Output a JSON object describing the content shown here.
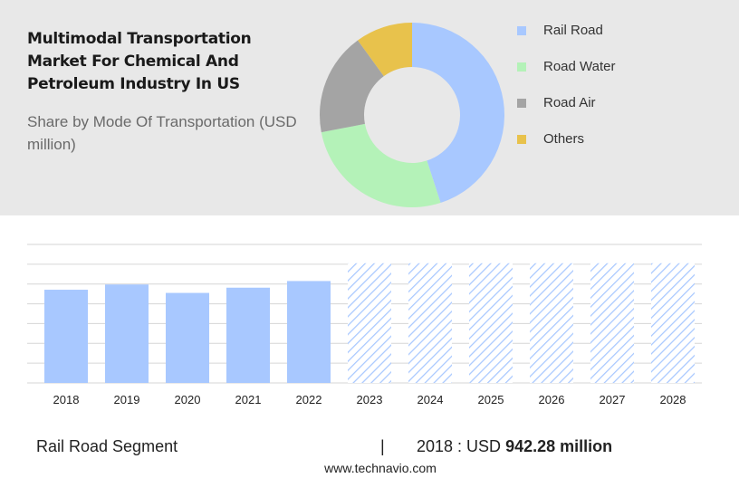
{
  "header": {
    "title": "Multimodal Transportation Market For Chemical And Petroleum Industry In US",
    "subtitle": "Share by Mode Of Transportation (USD million)"
  },
  "colors": {
    "rail_road": "#a8c8ff",
    "road_water": "#b4f2b8",
    "road_air": "#a4a4a4",
    "others": "#e8c24c",
    "forecast_hatch": "#a8c8ff"
  },
  "chart_data": [
    {
      "type": "pie",
      "variant": "donut",
      "title": "Share by Mode Of Transportation (USD million)",
      "legend_position": "right",
      "slices": [
        {
          "name": "Rail Road",
          "value": 45,
          "color": "#a8c8ff"
        },
        {
          "name": "Road Water",
          "value": 27,
          "color": "#b4f2b8"
        },
        {
          "name": "Road Air",
          "value": 18,
          "color": "#a4a4a4"
        },
        {
          "name": "Others",
          "value": 10,
          "color": "#e8c24c"
        }
      ]
    },
    {
      "type": "bar",
      "categories": [
        "2018",
        "2019",
        "2020",
        "2021",
        "2022",
        "2023",
        "2024",
        "2025",
        "2026",
        "2027",
        "2028"
      ],
      "values": [
        942.28,
        995,
        910,
        963,
        1030,
        null,
        null,
        null,
        null,
        null,
        null
      ],
      "forecast": [
        false,
        false,
        false,
        false,
        false,
        true,
        true,
        true,
        true,
        true,
        true
      ],
      "forecast_value": 1210,
      "ylim": [
        0,
        1400
      ],
      "grid": true
    }
  ],
  "footer": {
    "segment_label": "Rail Road Segment",
    "separator": "|",
    "value_prefix": "2018 : USD",
    "value_bold": "942.28 million",
    "source": "www.technavio.com"
  }
}
